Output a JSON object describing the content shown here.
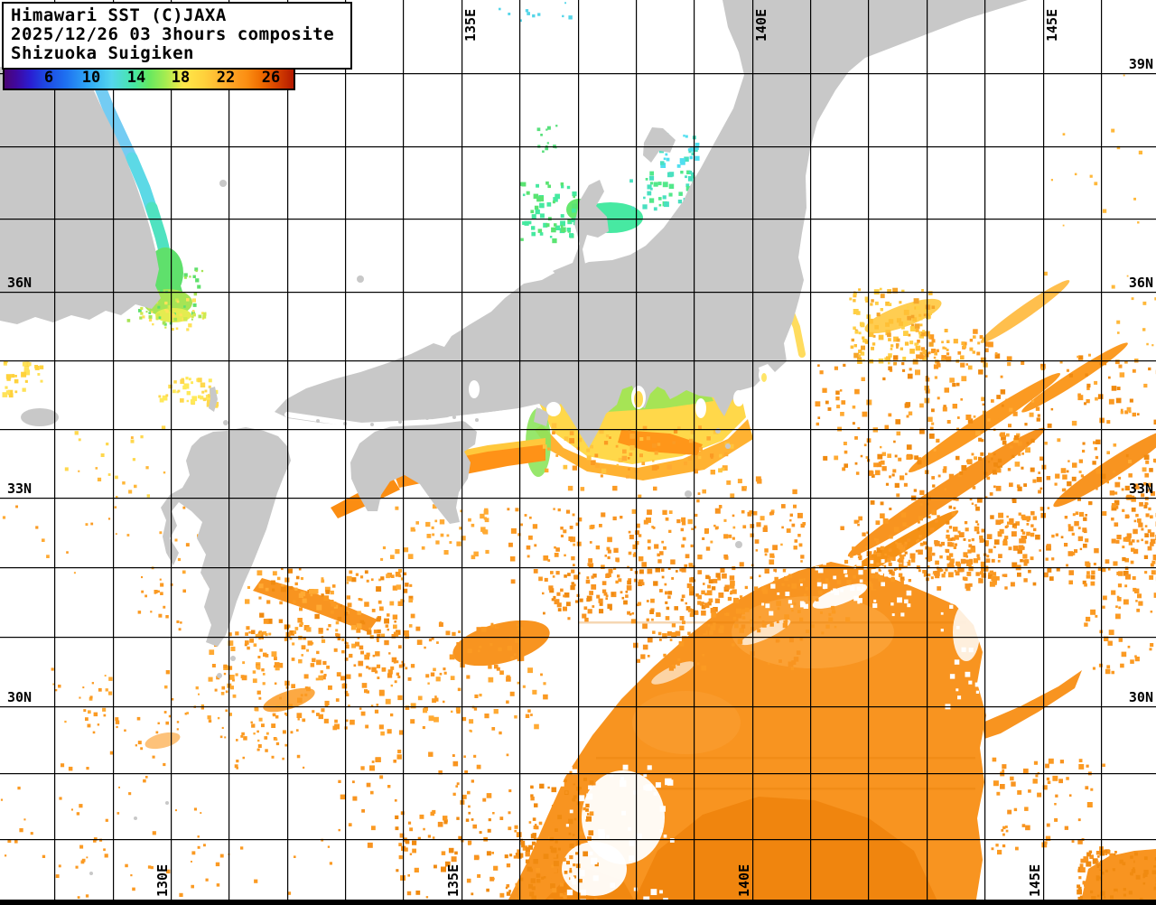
{
  "header": {
    "line1": "Himawari SST (C)JAXA",
    "line2": "2025/12/26 03 3hours composite",
    "line3": "Shizuoka Suigiken"
  },
  "colorbar": {
    "ticks": [
      "6",
      "10",
      "14",
      "18",
      "22",
      "26"
    ],
    "stops": [
      [
        "#4a0673",
        0
      ],
      [
        "#40089e",
        4
      ],
      [
        "#2a1ed2",
        9
      ],
      [
        "#1f41e0",
        13
      ],
      [
        "#1e6ff0",
        21
      ],
      [
        "#2fa8f5",
        29
      ],
      [
        "#54d6ee",
        37
      ],
      [
        "#46e8a2",
        45
      ],
      [
        "#66e860",
        50
      ],
      [
        "#a8ec50",
        56
      ],
      [
        "#ffe84a",
        62
      ],
      [
        "#ffd23c",
        69
      ],
      [
        "#ffaa2a",
        77
      ],
      [
        "#fb8d12",
        84
      ],
      [
        "#ee6a00",
        89
      ],
      [
        "#d84400",
        94
      ],
      [
        "#b41900",
        100
      ]
    ]
  },
  "grid_labels": {
    "top": [
      "135E",
      "140E",
      "145E"
    ],
    "bottom": [
      "130E",
      "135E",
      "140E",
      "145E"
    ],
    "left": [
      "36N",
      "33N",
      "30N"
    ],
    "right": [
      "39N",
      "36N",
      "33N",
      "30N"
    ]
  },
  "palette": {
    "land": "#c8c8c8",
    "grid": "#000000",
    "sea_bg": "#ffffff",
    "cold_blue": "#74ccf3",
    "cyan": "#5cd9e6",
    "teal": "#4fe2c0",
    "mint": "#47e9a2",
    "green": "#5fe06c",
    "yellow_green": "#a6e455",
    "yellow": "#ffd84a",
    "amber": "#ffb232",
    "orange": "#f89420",
    "deep_orange": "#ee8008",
    "red_orange": "#f08a10"
  },
  "map_regions": [
    "korea",
    "korea-coast-cold-water",
    "japan-honshu",
    "noto-peninsula",
    "sado-island",
    "shikoku",
    "kyushu",
    "awaji-island",
    "izu-islands",
    "tokai-coastal-water",
    "kuroshio-current",
    "pacific-warm-water-mass"
  ]
}
